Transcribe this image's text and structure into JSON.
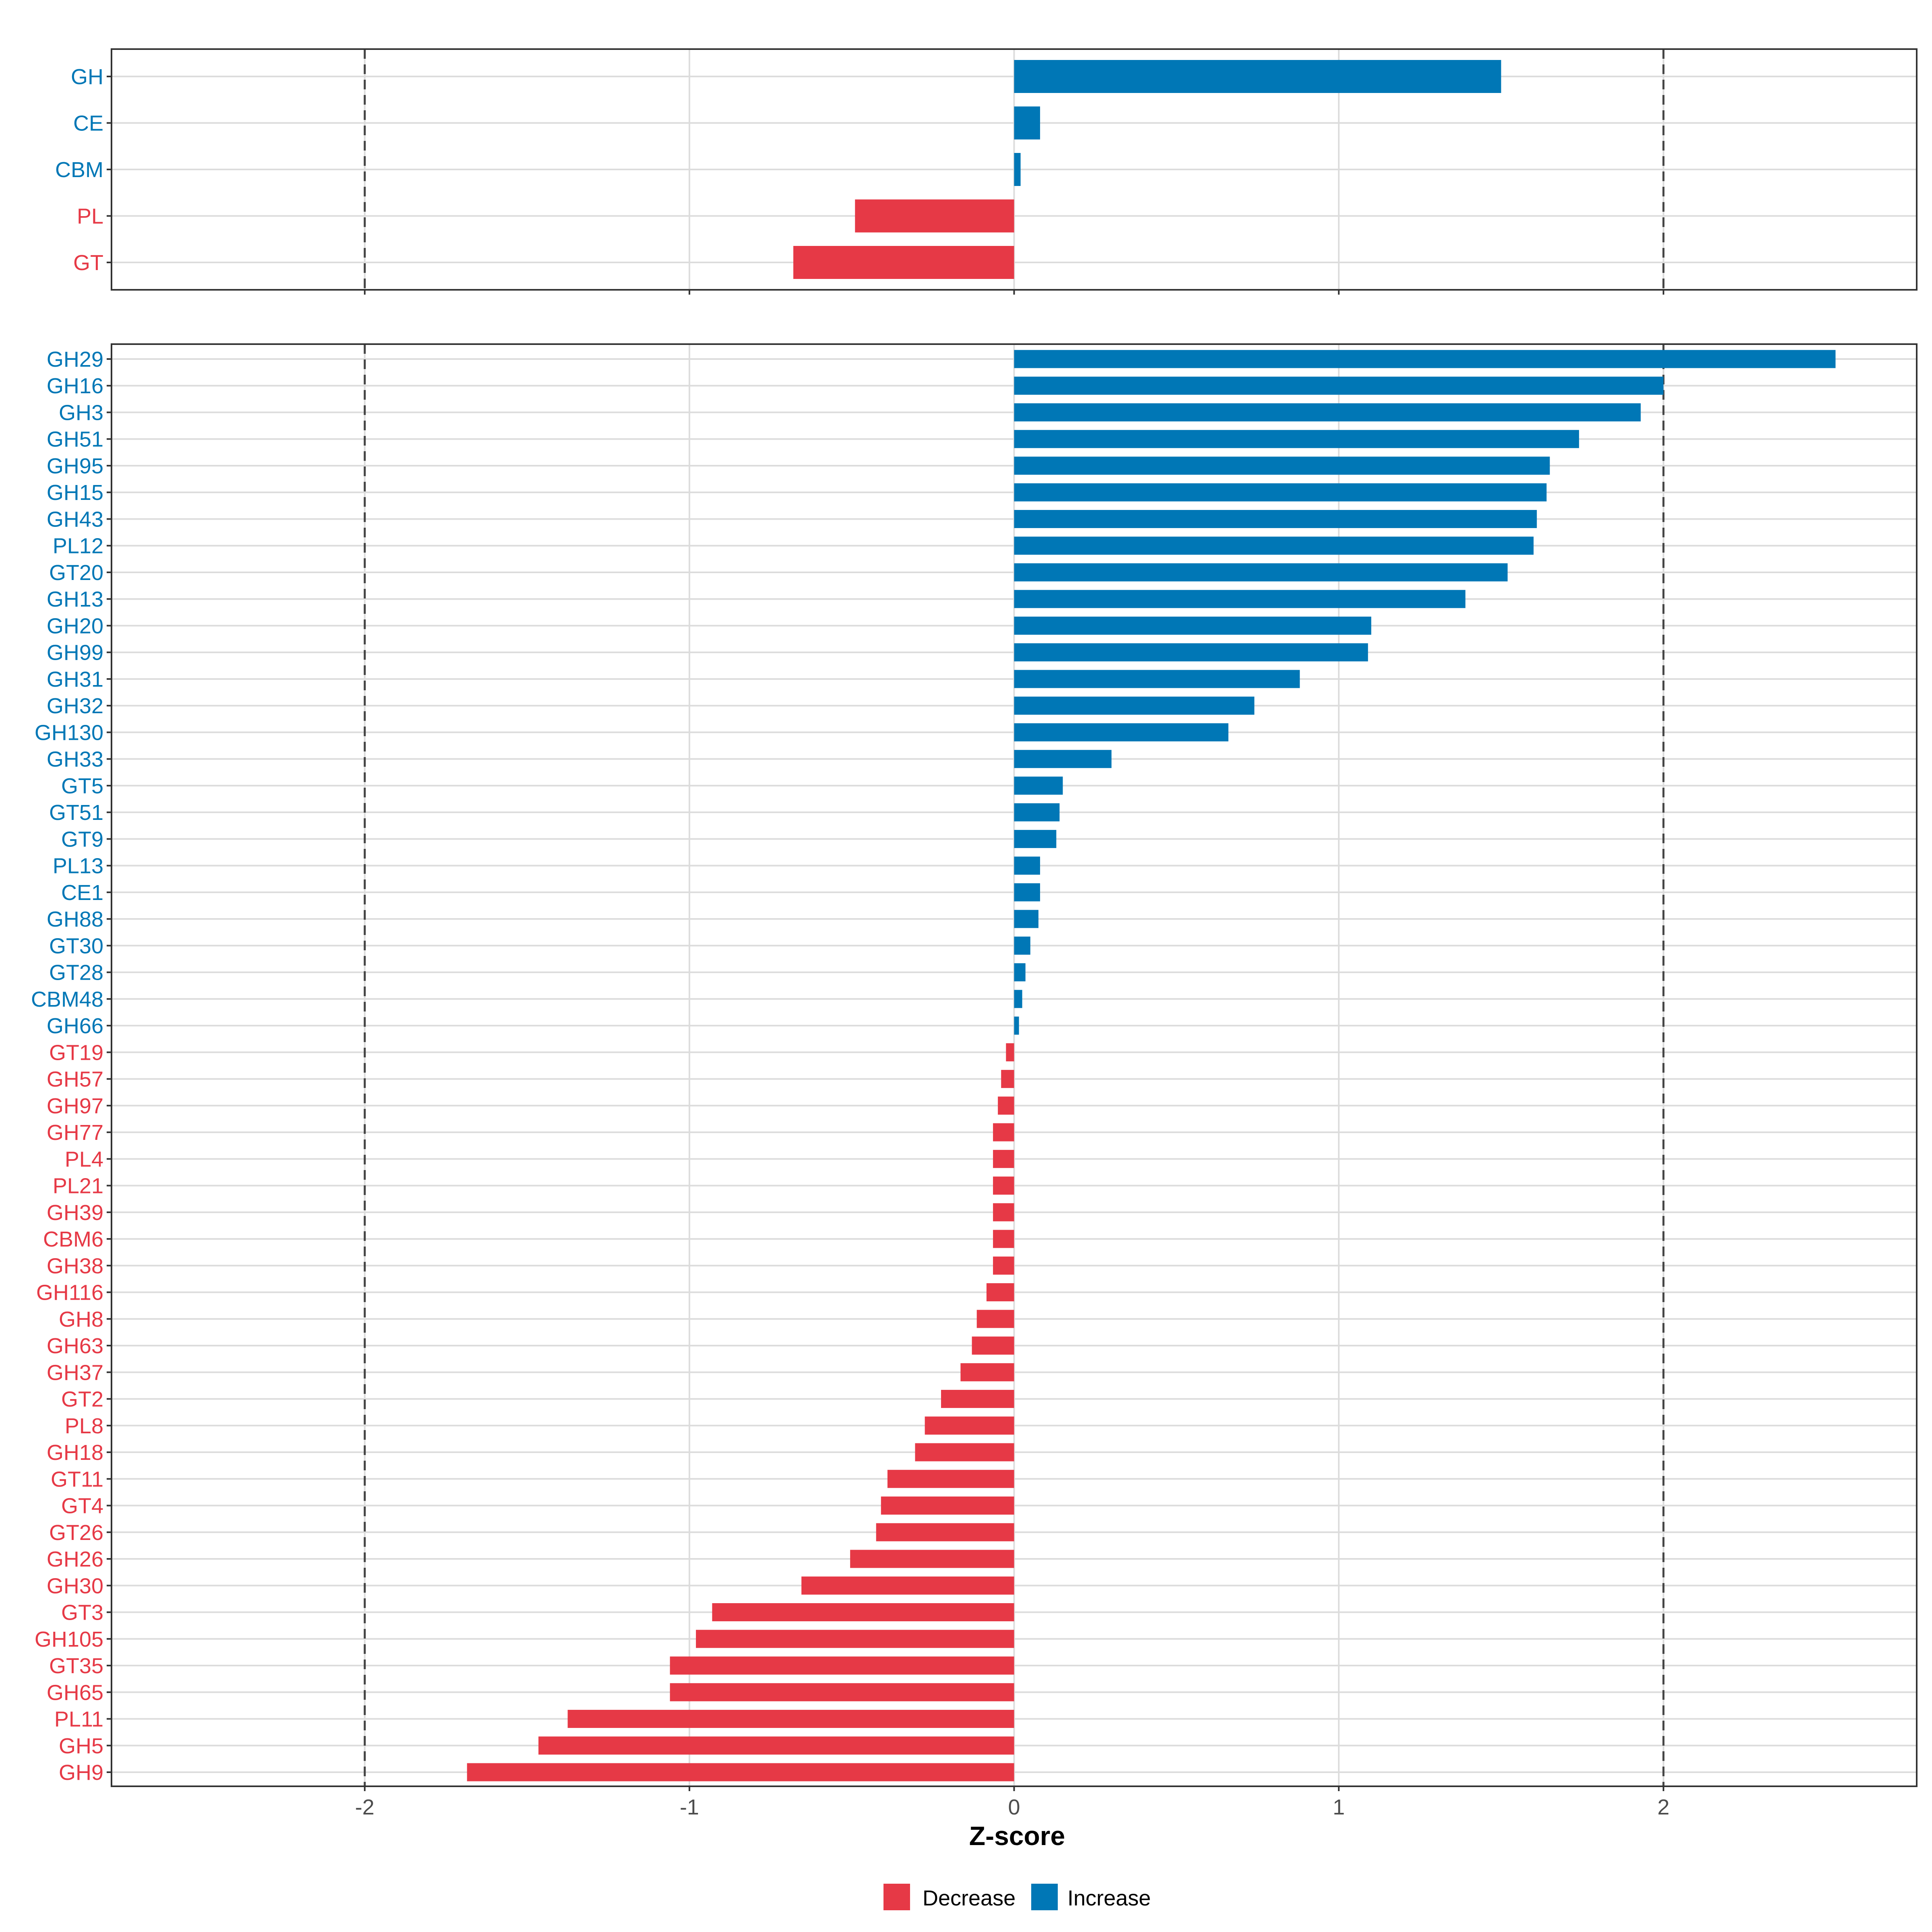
{
  "colors": {
    "decrease": "#E63946",
    "increase": "#0077B6"
  },
  "legend": {
    "decrease_label": "Decrease",
    "increase_label": "Increase"
  },
  "chart_data": [
    {
      "type": "bar",
      "orientation": "horizontal",
      "panel": "family",
      "xlabel": "",
      "xlim": [
        -2.78,
        2.78
      ],
      "xticks": [
        -2,
        -1,
        0,
        1,
        2
      ],
      "reference_lines": [
        -2,
        2
      ],
      "categories": [
        "GH",
        "CE",
        "CBM",
        "PL",
        "GT"
      ],
      "values": [
        1.5,
        0.08,
        0.02,
        -0.49,
        -0.68
      ]
    },
    {
      "type": "bar",
      "orientation": "horizontal",
      "panel": "subfamily",
      "xlabel": "Z-score",
      "xlim": [
        -2.78,
        2.78
      ],
      "xticks": [
        -2,
        -1,
        0,
        1,
        2
      ],
      "xtick_labels": [
        "-2",
        "-1",
        "0",
        "1",
        "2"
      ],
      "reference_lines": [
        -2,
        2
      ],
      "categories": [
        "GH29",
        "GH16",
        "GH3",
        "GH51",
        "GH95",
        "GH15",
        "GH43",
        "PL12",
        "GT20",
        "GH13",
        "GH20",
        "GH99",
        "GH31",
        "GH32",
        "GH130",
        "GH33",
        "GT5",
        "GT51",
        "GT9",
        "PL13",
        "CE1",
        "GH88",
        "GT30",
        "GT28",
        "CBM48",
        "GH66",
        "GT19",
        "GH57",
        "GH97",
        "GH77",
        "PL4",
        "PL21",
        "GH39",
        "CBM6",
        "GH38",
        "GH116",
        "GH8",
        "GH63",
        "GH37",
        "GT2",
        "PL8",
        "GH18",
        "GT11",
        "GT4",
        "GT26",
        "GH26",
        "GH30",
        "GT3",
        "GH105",
        "GT35",
        "GH65",
        "PL11",
        "GH5",
        "GH9"
      ],
      "values": [
        2.53,
        2.0,
        1.93,
        1.74,
        1.65,
        1.64,
        1.61,
        1.6,
        1.52,
        1.39,
        1.1,
        1.09,
        0.88,
        0.74,
        0.66,
        0.3,
        0.15,
        0.14,
        0.13,
        0.08,
        0.08,
        0.075,
        0.05,
        0.035,
        0.025,
        0.015,
        -0.025,
        -0.04,
        -0.05,
        -0.065,
        -0.065,
        -0.065,
        -0.065,
        -0.065,
        -0.065,
        -0.085,
        -0.115,
        -0.13,
        -0.165,
        -0.225,
        -0.275,
        -0.305,
        -0.39,
        -0.41,
        -0.425,
        -0.505,
        -0.655,
        -0.93,
        -0.98,
        -1.06,
        -1.06,
        -1.375,
        -1.465,
        -1.685
      ]
    }
  ]
}
